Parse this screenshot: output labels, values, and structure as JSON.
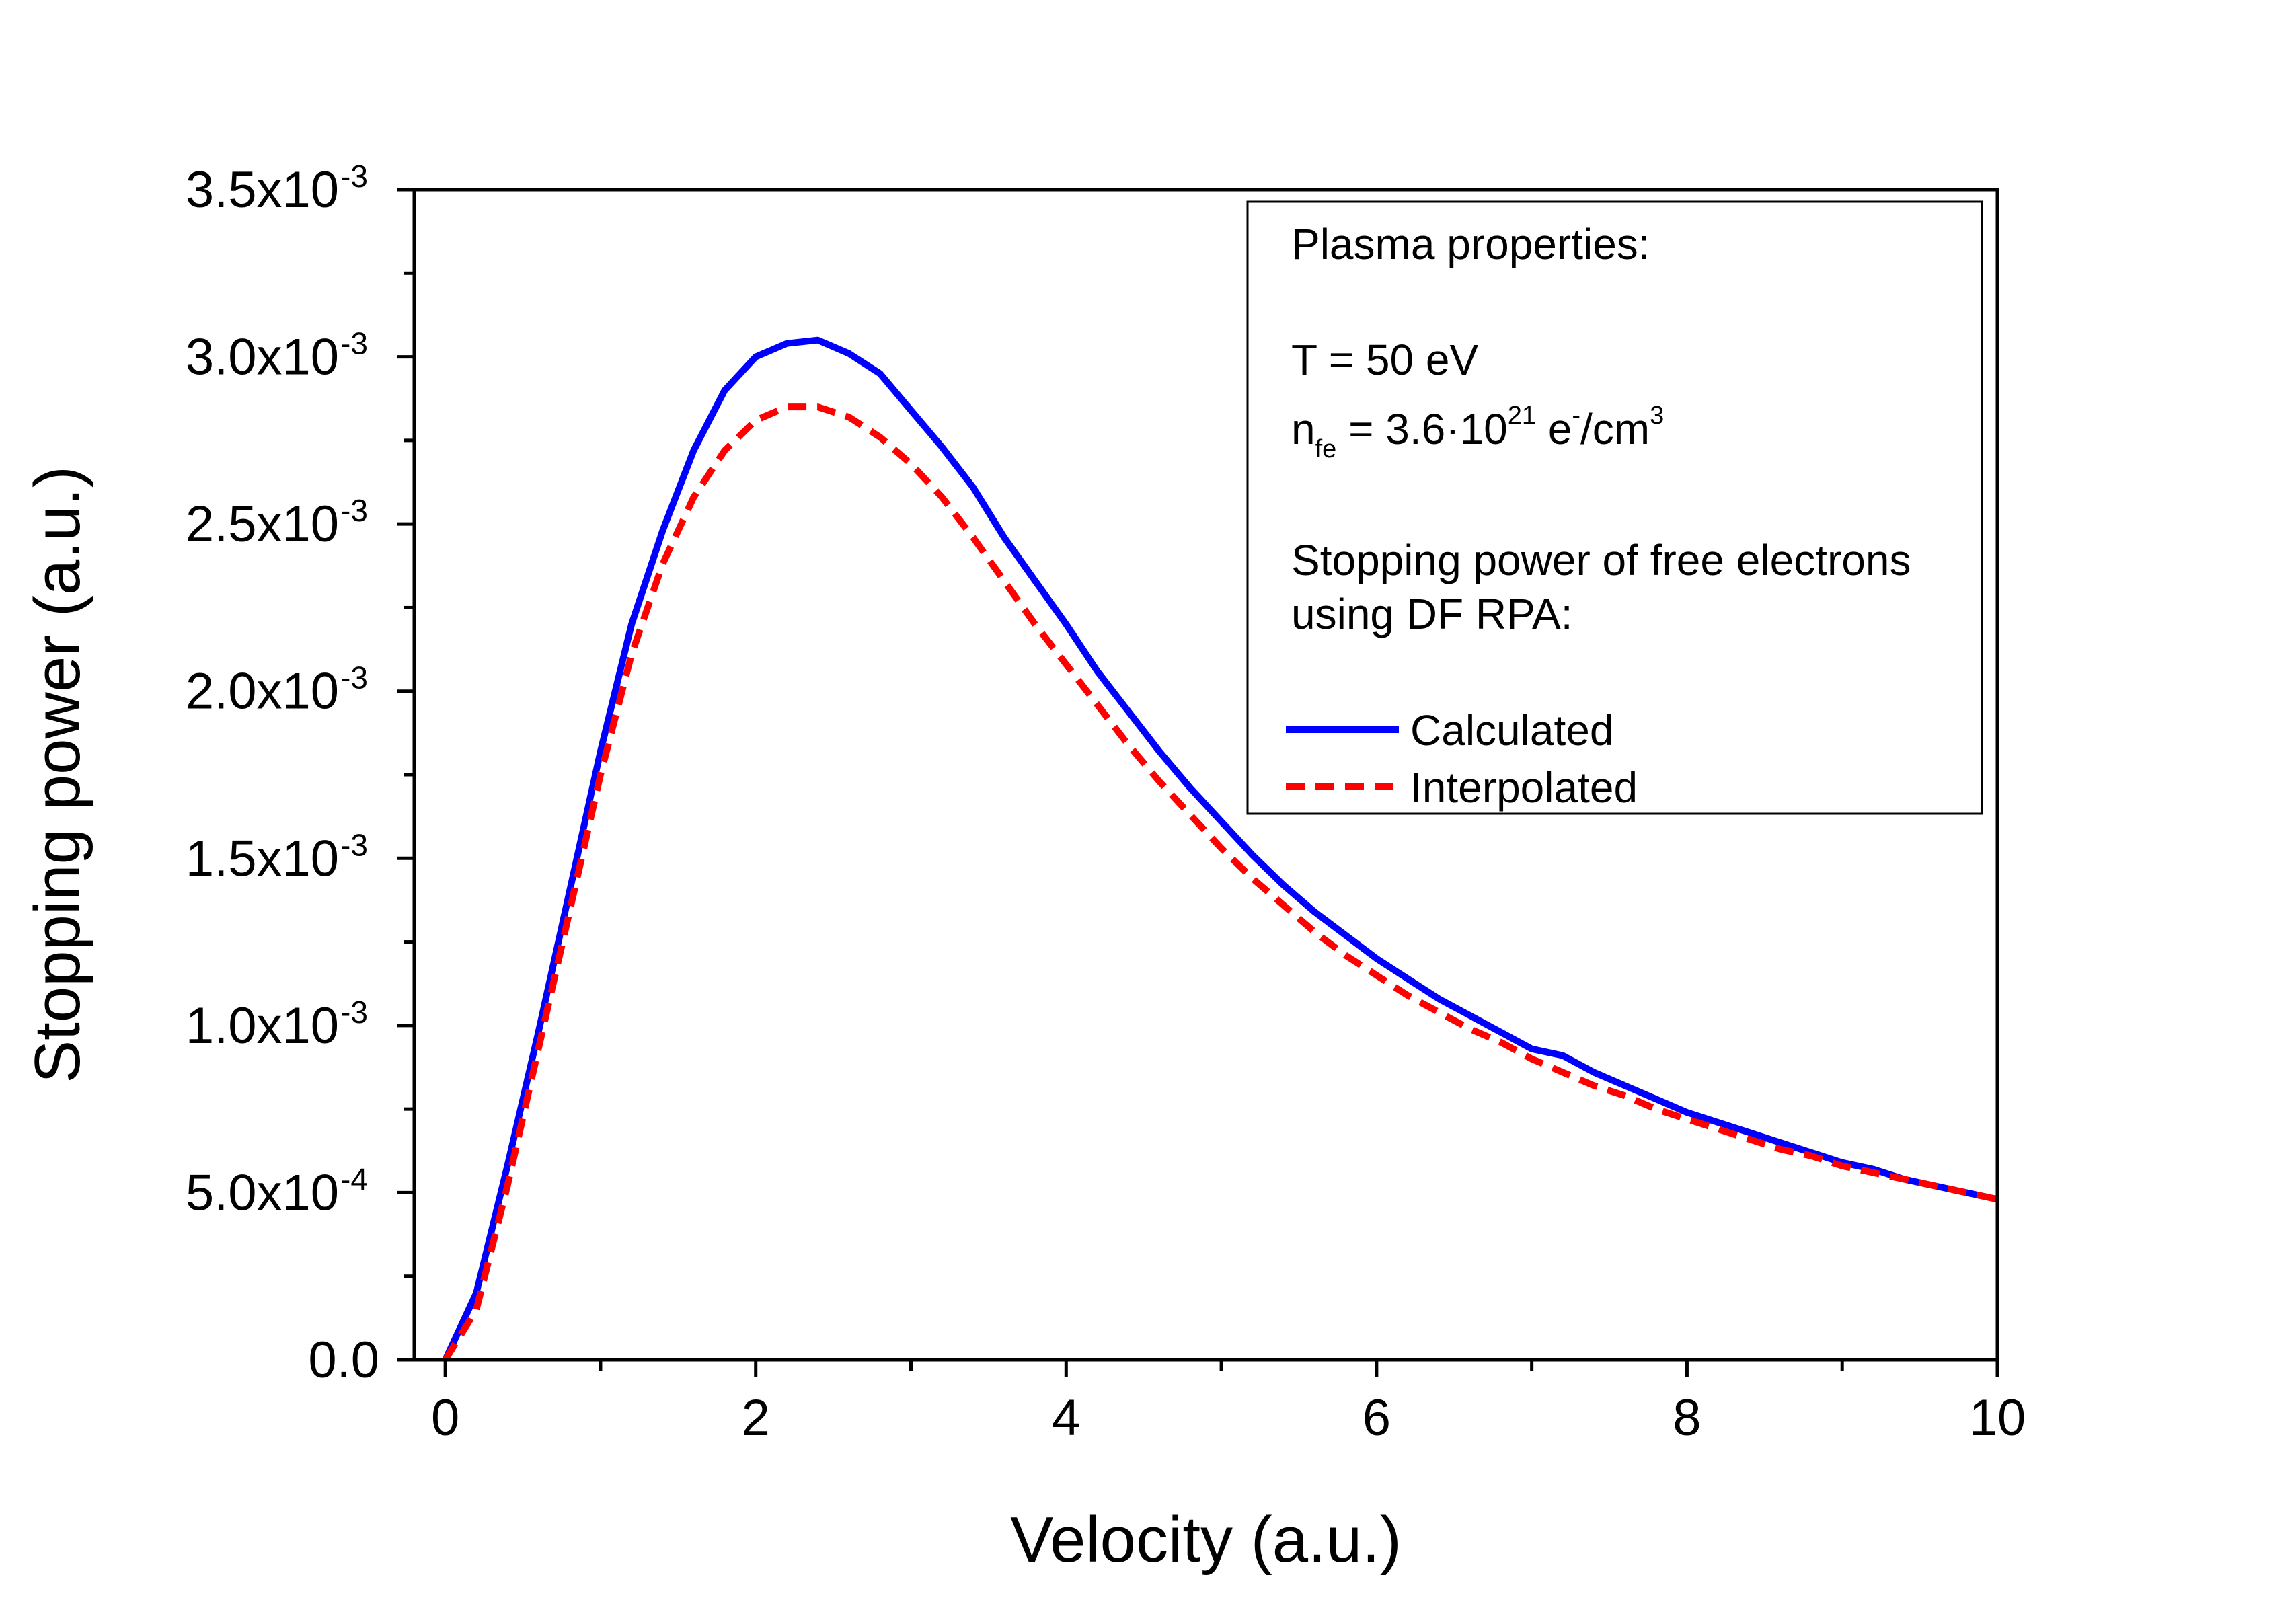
{
  "chart_data": {
    "type": "line",
    "title": "",
    "xlabel": "Velocity (a.u.)",
    "ylabel": "Stopping power (a.u.)",
    "xlim": [
      -0.2,
      10
    ],
    "ylim": [
      0,
      0.0035
    ],
    "x_ticks": [
      0,
      2,
      4,
      6,
      8,
      10
    ],
    "y_ticks": [
      {
        "value": 0.0,
        "mantissa": "0.0",
        "exponent": ""
      },
      {
        "value": 0.0005,
        "mantissa": "5.0x10",
        "exponent": "-4"
      },
      {
        "value": 0.001,
        "mantissa": "1.0x10",
        "exponent": "-3"
      },
      {
        "value": 0.0015,
        "mantissa": "1.5x10",
        "exponent": "-3"
      },
      {
        "value": 0.002,
        "mantissa": "2.0x10",
        "exponent": "-3"
      },
      {
        "value": 0.0025,
        "mantissa": "2.5x10",
        "exponent": "-3"
      },
      {
        "value": 0.003,
        "mantissa": "3.0x10",
        "exponent": "-3"
      },
      {
        "value": 0.0035,
        "mantissa": "3.5x10",
        "exponent": "-3"
      }
    ],
    "series": [
      {
        "name": "Calculated",
        "color": "#0000ff",
        "style": "solid",
        "x": [
          0,
          0.2,
          0.4,
          0.6,
          0.8,
          1.0,
          1.2,
          1.4,
          1.6,
          1.8,
          2.0,
          2.2,
          2.4,
          2.6,
          2.8,
          3.0,
          3.2,
          3.4,
          3.6,
          3.8,
          4.0,
          4.2,
          4.4,
          4.6,
          4.8,
          5.0,
          5.2,
          5.4,
          5.6,
          5.8,
          6.0,
          6.2,
          6.4,
          6.6,
          6.8,
          7.0,
          7.2,
          7.4,
          7.6,
          7.8,
          8.0,
          8.2,
          8.4,
          8.6,
          8.8,
          9.0,
          9.2,
          9.4,
          9.6,
          9.8,
          10.0
        ],
        "y": [
          0.0,
          0.0002,
          0.00058,
          0.00098,
          0.0014,
          0.00182,
          0.0022,
          0.00248,
          0.00272,
          0.0029,
          0.003,
          0.00304,
          0.00305,
          0.00301,
          0.00295,
          0.00284,
          0.00273,
          0.00261,
          0.00246,
          0.00233,
          0.0022,
          0.00206,
          0.00194,
          0.00182,
          0.00171,
          0.00161,
          0.00151,
          0.00142,
          0.00134,
          0.00127,
          0.0012,
          0.00114,
          0.00108,
          0.00103,
          0.00098,
          0.00093,
          0.00091,
          0.00086,
          0.00082,
          0.00078,
          0.00074,
          0.00071,
          0.00068,
          0.00065,
          0.00062,
          0.00059,
          0.00057,
          0.00054,
          0.00052,
          0.0005,
          0.00048
        ]
      },
      {
        "name": "Interpolated",
        "color": "#ff0000",
        "style": "dashed",
        "x": [
          0,
          0.2,
          0.4,
          0.6,
          0.8,
          1.0,
          1.2,
          1.4,
          1.6,
          1.8,
          2.0,
          2.2,
          2.4,
          2.6,
          2.8,
          3.0,
          3.2,
          3.4,
          3.6,
          3.8,
          4.0,
          4.2,
          4.4,
          4.6,
          4.8,
          5.0,
          5.2,
          5.4,
          5.6,
          5.8,
          6.0,
          6.2,
          6.4,
          6.6,
          6.8,
          7.0,
          7.2,
          7.4,
          7.6,
          7.8,
          8.0,
          8.2,
          8.4,
          8.6,
          8.8,
          9.0,
          9.2,
          9.4,
          9.6,
          9.8,
          10.0
        ],
        "y": [
          0.0,
          0.00015,
          0.00052,
          0.00093,
          0.00134,
          0.00175,
          0.00211,
          0.00238,
          0.00258,
          0.00272,
          0.00281,
          0.00285,
          0.00285,
          0.00282,
          0.00276,
          0.00268,
          0.00258,
          0.00246,
          0.00233,
          0.0022,
          0.00208,
          0.00196,
          0.00184,
          0.00173,
          0.00163,
          0.00153,
          0.00144,
          0.00136,
          0.00128,
          0.00121,
          0.00115,
          0.00109,
          0.00104,
          0.00099,
          0.00095,
          0.0009,
          0.00086,
          0.00082,
          0.00079,
          0.00075,
          0.00072,
          0.00069,
          0.00066,
          0.00063,
          0.00061,
          0.00058,
          0.00056,
          0.00054,
          0.00052,
          0.0005,
          0.00048
        ]
      }
    ],
    "legend": {
      "position": "top-right",
      "heading": "Plasma properties:",
      "temperature": "T = 50 eV",
      "density_base": "n",
      "density_sub": "fe",
      "density_value": " = 3.6·10",
      "density_exp": "21",
      "density_unit_e": " e",
      "density_unit_e_sup": "-",
      "density_unit_rest": "/cm",
      "density_unit_exp": "3",
      "method_line1": "Stopping power of free electrons",
      "method_line2": "using DF RPA:",
      "series_calculated": "Calculated",
      "series_interpolated": "Interpolated"
    }
  }
}
